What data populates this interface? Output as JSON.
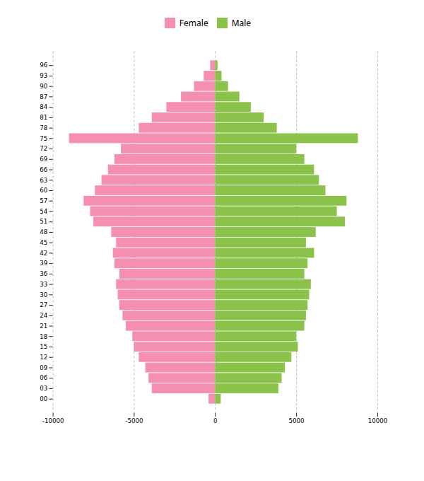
{
  "chart_data": {
    "type": "bar",
    "orientation": "horizontal",
    "categories": [
      "96",
      "93",
      "90",
      "87",
      "84",
      "81",
      "78",
      "75",
      "72",
      "69",
      "66",
      "63",
      "60",
      "57",
      "54",
      "51",
      "48",
      "45",
      "42",
      "39",
      "36",
      "33",
      "30",
      "27",
      "24",
      "21",
      "18",
      "15",
      "12",
      "09",
      "06",
      "03",
      "00"
    ],
    "series": [
      {
        "name": "Female",
        "color": "#f48fb1",
        "values": [
          -300,
          -700,
          -1300,
          -2100,
          -3000,
          -3900,
          -4700,
          -9000,
          -5800,
          -6200,
          -6600,
          -7000,
          -7400,
          -8100,
          -7700,
          -7500,
          -6400,
          -6100,
          -6300,
          -6200,
          -5900,
          -6100,
          -6000,
          -5900,
          -5700,
          -5500,
          -5100,
          -5000,
          -4700,
          -4300,
          -4100,
          -3900,
          -400
        ]
      },
      {
        "name": "Male",
        "color": "#8bc34a",
        "values": [
          150,
          400,
          800,
          1500,
          2200,
          3000,
          3800,
          8800,
          5000,
          5500,
          6100,
          6400,
          6800,
          8100,
          7500,
          8000,
          6200,
          5600,
          6100,
          5700,
          5500,
          5900,
          5800,
          5700,
          5600,
          5500,
          5000,
          5100,
          4700,
          4300,
          4100,
          3900,
          350
        ]
      }
    ],
    "xlim": [
      -10000,
      10000
    ],
    "xticks": [
      -10000,
      -5000,
      0,
      5000,
      10000
    ],
    "grid": true,
    "legend": "upper center"
  }
}
